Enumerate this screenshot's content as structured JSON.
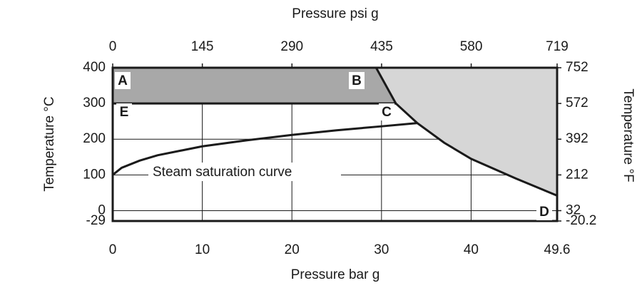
{
  "chart_data": {
    "type": "line",
    "xlabel": "Pressure bar g",
    "x2label": "Pressure psi g",
    "ylabel": "Temperature °C",
    "y2label": "Temperature  °F",
    "xlim": [
      0,
      49.6
    ],
    "xticks": [
      0,
      10,
      20,
      30,
      40,
      49.6
    ],
    "x2lim": [
      0,
      719
    ],
    "x2ticks": [
      0,
      145,
      290,
      435,
      580,
      719
    ],
    "ylim": [
      -29,
      400
    ],
    "yticks": [
      -29,
      0,
      100,
      200,
      300,
      400
    ],
    "y2lim": [
      -20.2,
      752
    ],
    "y2ticks": [
      -20.2,
      32,
      212,
      392,
      572,
      752
    ],
    "grid": true,
    "series": [
      {
        "name": "Steam saturation curve",
        "color": "#1a1a1a",
        "x": [
          0,
          1,
          3,
          5,
          10,
          15,
          20,
          25,
          30,
          34
        ],
        "values": [
          100,
          120,
          140,
          155,
          180,
          197,
          212,
          225,
          236,
          245
        ]
      },
      {
        "color": "#1a1a1a",
        "fill": "#d6d6d6",
        "x": [
          29.4,
          31.6,
          34,
          37,
          40,
          45,
          49.6
        ],
        "values": [
          400,
          300,
          245,
          190,
          145,
          90,
          42
        ]
      }
    ],
    "band": {
      "color": "#a8a8a8",
      "y": 300
    },
    "point_labels": [
      "A",
      "B",
      "C",
      "D",
      "E"
    ]
  }
}
